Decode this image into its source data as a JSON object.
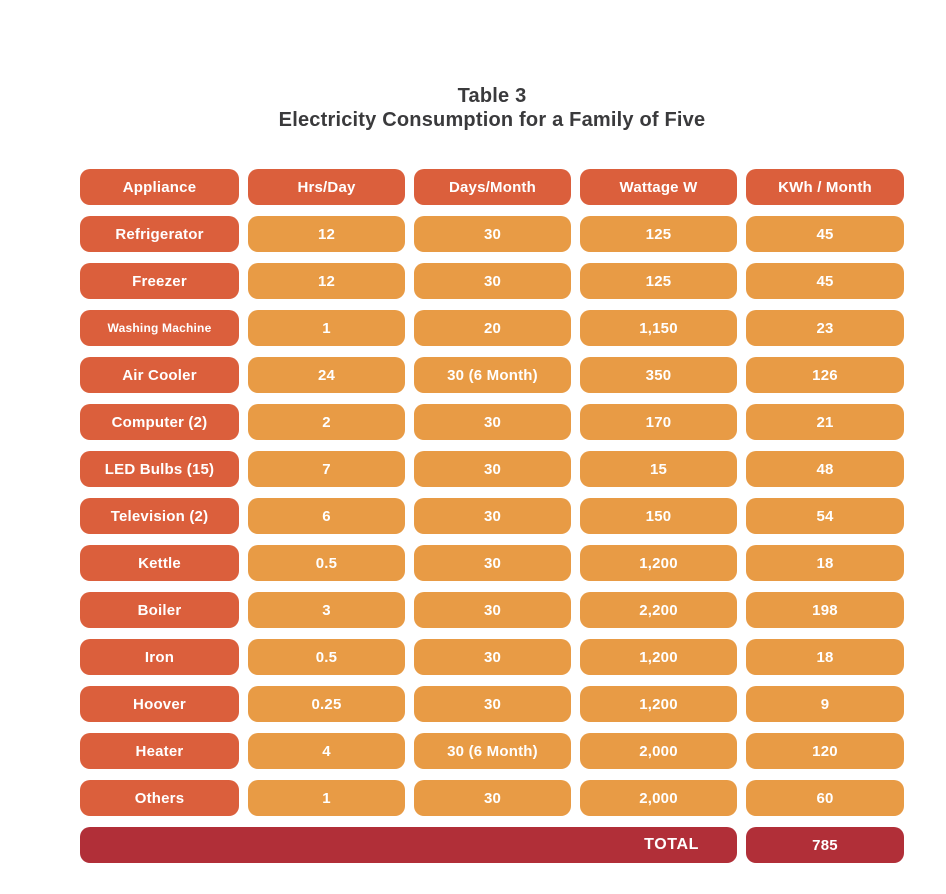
{
  "title": {
    "line1": "Table 3",
    "line2": "Electricity Consumption for a Family of Five"
  },
  "colors": {
    "header_pill": "#db5f3c",
    "appliance_pill": "#db5f3c",
    "data_pill": "#e89b45",
    "total_pill": "#b12f38",
    "cell_text": "#ffffff",
    "title_text": "#3a3a3c",
    "background": "#ffffff"
  },
  "table": {
    "headers": [
      "Appliance",
      "Hrs/Day",
      "Days/Month",
      "Wattage W",
      "KWh / Month"
    ],
    "rows": [
      {
        "appliance": "Refrigerator",
        "hrs_day": "12",
        "days_month": "30",
        "wattage_w": "125",
        "kwh_month": "45"
      },
      {
        "appliance": "Freezer",
        "hrs_day": "12",
        "days_month": "30",
        "wattage_w": "125",
        "kwh_month": "45"
      },
      {
        "appliance": "Washing Machine",
        "hrs_day": "1",
        "days_month": "20",
        "wattage_w": "1,150",
        "kwh_month": "23"
      },
      {
        "appliance": "Air Cooler",
        "hrs_day": "24",
        "days_month": "30 (6 Month)",
        "wattage_w": "350",
        "kwh_month": "126"
      },
      {
        "appliance": "Computer (2)",
        "hrs_day": "2",
        "days_month": "30",
        "wattage_w": "170",
        "kwh_month": "21"
      },
      {
        "appliance": "LED Bulbs (15)",
        "hrs_day": "7",
        "days_month": "30",
        "wattage_w": "15",
        "kwh_month": "48"
      },
      {
        "appliance": "Television (2)",
        "hrs_day": "6",
        "days_month": "30",
        "wattage_w": "150",
        "kwh_month": "54"
      },
      {
        "appliance": "Kettle",
        "hrs_day": "0.5",
        "days_month": "30",
        "wattage_w": "1,200",
        "kwh_month": "18"
      },
      {
        "appliance": "Boiler",
        "hrs_day": "3",
        "days_month": "30",
        "wattage_w": "2,200",
        "kwh_month": "198"
      },
      {
        "appliance": "Iron",
        "hrs_day": "0.5",
        "days_month": "30",
        "wattage_w": "1,200",
        "kwh_month": "18"
      },
      {
        "appliance": "Hoover",
        "hrs_day": "0.25",
        "days_month": "30",
        "wattage_w": "1,200",
        "kwh_month": "9"
      },
      {
        "appliance": "Heater",
        "hrs_day": "4",
        "days_month": "30 (6 Month)",
        "wattage_w": "2,000",
        "kwh_month": "120"
      },
      {
        "appliance": "Others",
        "hrs_day": "1",
        "days_month": "30",
        "wattage_w": "2,000",
        "kwh_month": "60"
      }
    ],
    "total": {
      "label": "TOTAL",
      "value": "785"
    }
  },
  "chart_data": {
    "type": "table",
    "title": "Table 3 — Electricity Consumption for a Family of Five",
    "columns": [
      "Appliance",
      "Hrs/Day",
      "Days/Month",
      "Wattage W",
      "KWh / Month"
    ],
    "rows": [
      [
        "Refrigerator",
        12,
        "30",
        125,
        45
      ],
      [
        "Freezer",
        12,
        "30",
        125,
        45
      ],
      [
        "Washing Machine",
        1,
        "20",
        1150,
        23
      ],
      [
        "Air Cooler",
        24,
        "30 (6 Month)",
        350,
        126
      ],
      [
        "Computer (2)",
        2,
        "30",
        170,
        21
      ],
      [
        "LED Bulbs (15)",
        7,
        "30",
        15,
        48
      ],
      [
        "Television (2)",
        6,
        "30",
        150,
        54
      ],
      [
        "Kettle",
        0.5,
        "30",
        1200,
        18
      ],
      [
        "Boiler",
        3,
        "30",
        2200,
        198
      ],
      [
        "Iron",
        0.5,
        "30",
        1200,
        18
      ],
      [
        "Hoover",
        0.25,
        "30",
        1200,
        9
      ],
      [
        "Heater",
        4,
        "30 (6 Month)",
        2000,
        120
      ],
      [
        "Others",
        1,
        "30",
        2000,
        60
      ]
    ],
    "total_kwh_per_month": 785
  }
}
